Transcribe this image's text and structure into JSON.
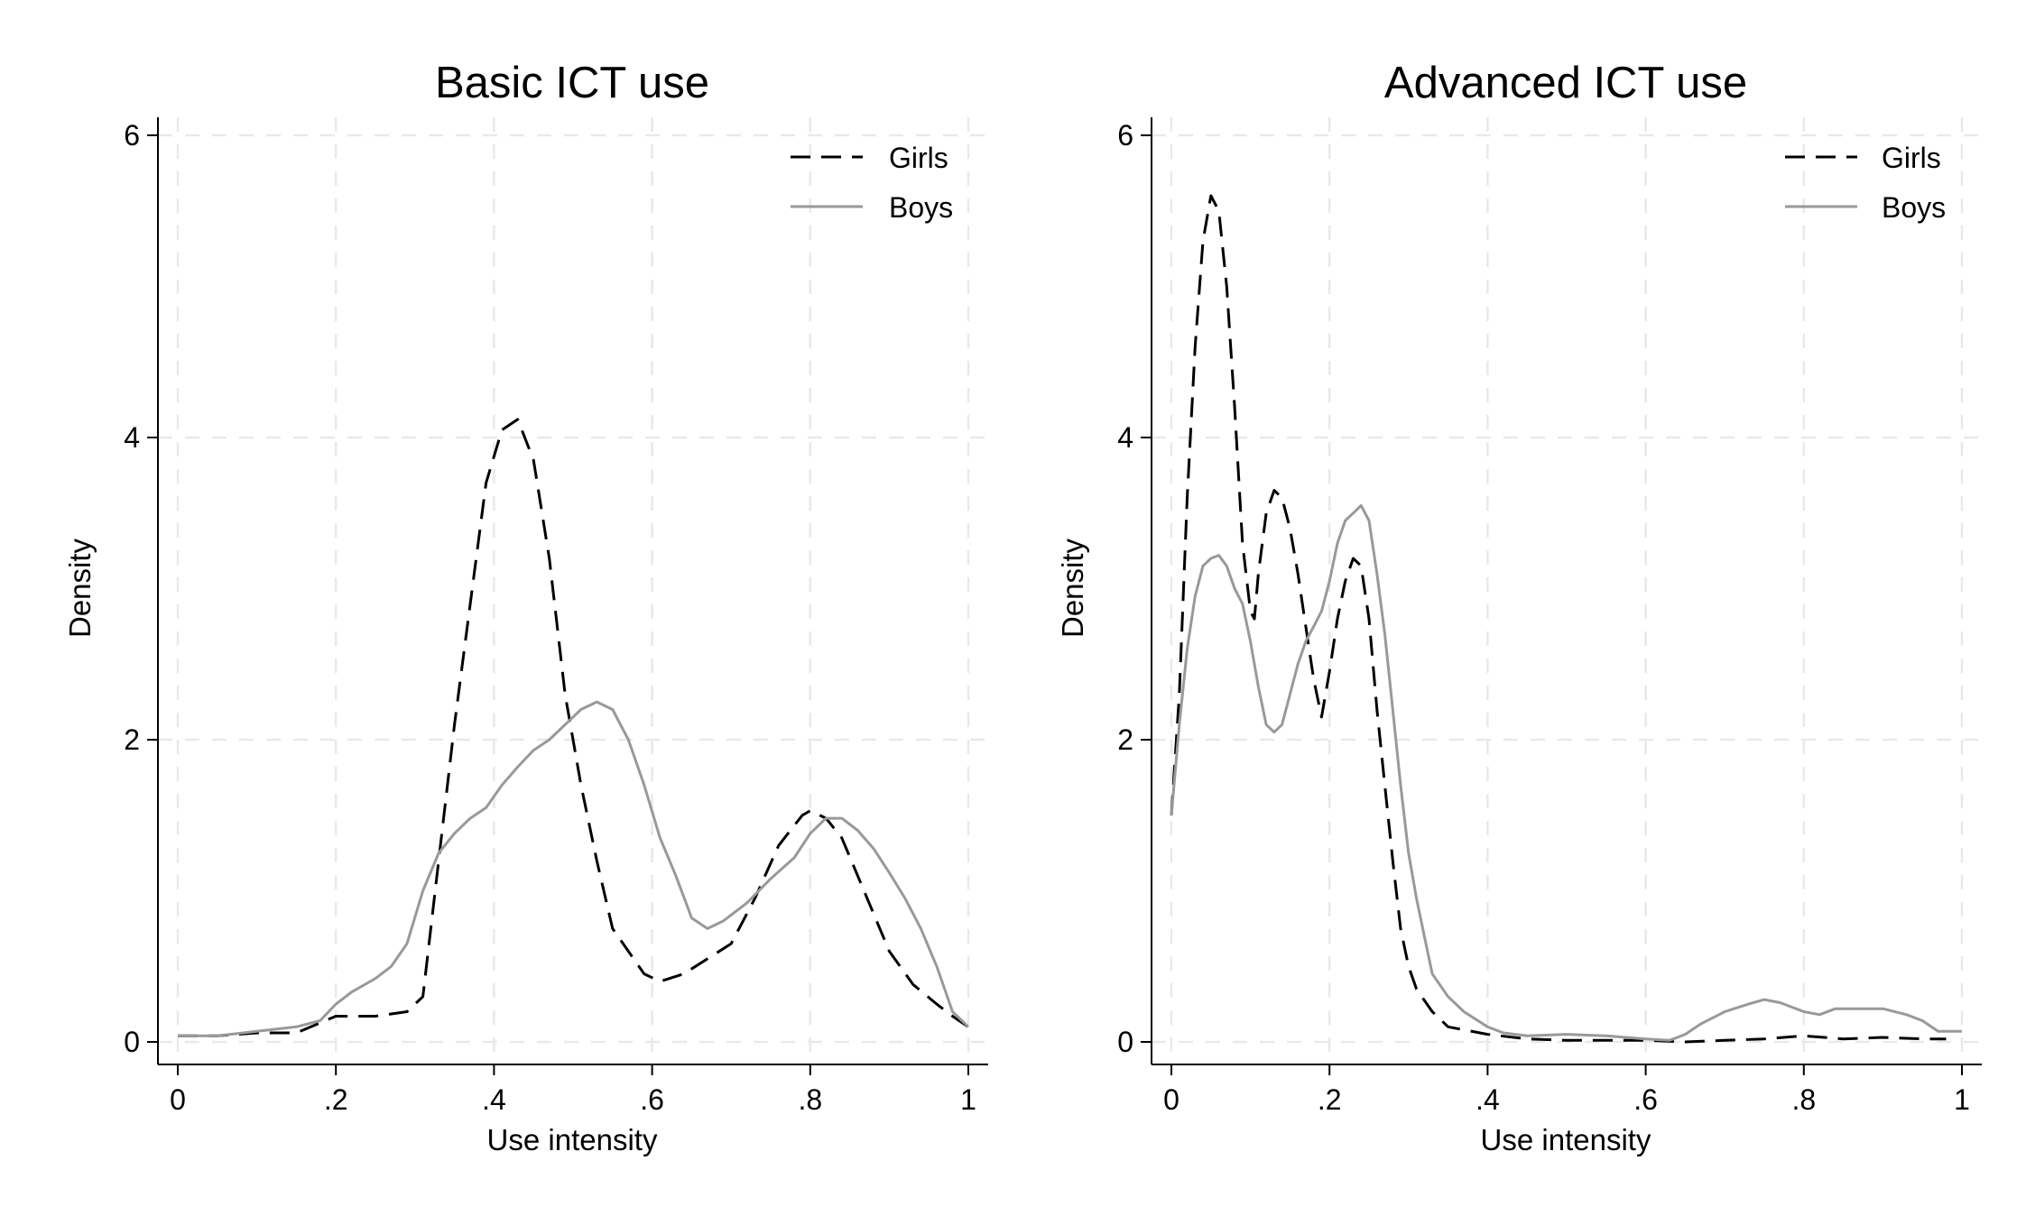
{
  "chart_data": [
    {
      "type": "line",
      "title": "Basic ICT use",
      "xlabel": "Use intensity",
      "ylabel": "Density",
      "xlim": [
        0,
        1
      ],
      "ylim": [
        0,
        6
      ],
      "x_ticks": [
        "0",
        ".2",
        ".4",
        ".6",
        ".8",
        "1"
      ],
      "y_ticks": [
        "0",
        "2",
        "4",
        "6"
      ],
      "grid": true,
      "legend_position": "top-right",
      "series": [
        {
          "name": "Girls",
          "style": "dashed",
          "color": "#000000",
          "points": [
            [
              0,
              0.04
            ],
            [
              0.05,
              0.04
            ],
            [
              0.1,
              0.06
            ],
            [
              0.15,
              0.06
            ],
            [
              0.2,
              0.17
            ],
            [
              0.25,
              0.17
            ],
            [
              0.29,
              0.2
            ],
            [
              0.31,
              0.3
            ],
            [
              0.33,
              1.2
            ],
            [
              0.35,
              2.1
            ],
            [
              0.37,
              2.9
            ],
            [
              0.39,
              3.7
            ],
            [
              0.41,
              4.05
            ],
            [
              0.43,
              4.12
            ],
            [
              0.45,
              3.85
            ],
            [
              0.47,
              3.2
            ],
            [
              0.49,
              2.3
            ],
            [
              0.51,
              1.7
            ],
            [
              0.53,
              1.2
            ],
            [
              0.55,
              0.75
            ],
            [
              0.57,
              0.6
            ],
            [
              0.59,
              0.45
            ],
            [
              0.61,
              0.4
            ],
            [
              0.64,
              0.45
            ],
            [
              0.67,
              0.55
            ],
            [
              0.7,
              0.65
            ],
            [
              0.73,
              0.95
            ],
            [
              0.76,
              1.3
            ],
            [
              0.79,
              1.5
            ],
            [
              0.8,
              1.53
            ],
            [
              0.82,
              1.48
            ],
            [
              0.84,
              1.35
            ],
            [
              0.86,
              1.1
            ],
            [
              0.88,
              0.85
            ],
            [
              0.9,
              0.6
            ],
            [
              0.93,
              0.38
            ],
            [
              0.96,
              0.25
            ],
            [
              0.98,
              0.17
            ],
            [
              1,
              0.1
            ]
          ]
        },
        {
          "name": "Boys",
          "style": "solid",
          "color": "#999999",
          "points": [
            [
              0,
              0.04
            ],
            [
              0.05,
              0.04
            ],
            [
              0.1,
              0.07
            ],
            [
              0.15,
              0.1
            ],
            [
              0.18,
              0.14
            ],
            [
              0.2,
              0.25
            ],
            [
              0.22,
              0.33
            ],
            [
              0.25,
              0.42
            ],
            [
              0.27,
              0.5
            ],
            [
              0.29,
              0.65
            ],
            [
              0.31,
              1.0
            ],
            [
              0.33,
              1.25
            ],
            [
              0.35,
              1.38
            ],
            [
              0.37,
              1.48
            ],
            [
              0.39,
              1.55
            ],
            [
              0.41,
              1.7
            ],
            [
              0.43,
              1.82
            ],
            [
              0.45,
              1.93
            ],
            [
              0.47,
              2.0
            ],
            [
              0.49,
              2.1
            ],
            [
              0.51,
              2.2
            ],
            [
              0.53,
              2.25
            ],
            [
              0.55,
              2.2
            ],
            [
              0.57,
              2.0
            ],
            [
              0.59,
              1.7
            ],
            [
              0.61,
              1.35
            ],
            [
              0.63,
              1.1
            ],
            [
              0.65,
              0.82
            ],
            [
              0.67,
              0.75
            ],
            [
              0.69,
              0.8
            ],
            [
              0.72,
              0.92
            ],
            [
              0.75,
              1.08
            ],
            [
              0.78,
              1.22
            ],
            [
              0.8,
              1.38
            ],
            [
              0.82,
              1.48
            ],
            [
              0.84,
              1.48
            ],
            [
              0.86,
              1.4
            ],
            [
              0.88,
              1.28
            ],
            [
              0.9,
              1.12
            ],
            [
              0.92,
              0.95
            ],
            [
              0.94,
              0.75
            ],
            [
              0.96,
              0.5
            ],
            [
              0.98,
              0.2
            ],
            [
              1,
              0.1
            ]
          ]
        }
      ]
    },
    {
      "type": "line",
      "title": "Advanced ICT use",
      "xlabel": "Use intensity",
      "ylabel": "Density",
      "xlim": [
        0,
        1
      ],
      "ylim": [
        0,
        6
      ],
      "x_ticks": [
        "0",
        ".2",
        ".4",
        ".6",
        ".8",
        "1"
      ],
      "y_ticks": [
        "0",
        "2",
        "4",
        "6"
      ],
      "grid": true,
      "legend_position": "top-right",
      "series": [
        {
          "name": "Girls",
          "style": "dashed",
          "color": "#000000",
          "points": [
            [
              0,
              1.5
            ],
            [
              0.01,
              2.3
            ],
            [
              0.02,
              3.6
            ],
            [
              0.03,
              4.6
            ],
            [
              0.04,
              5.3
            ],
            [
              0.05,
              5.6
            ],
            [
              0.06,
              5.5
            ],
            [
              0.07,
              5.0
            ],
            [
              0.08,
              4.2
            ],
            [
              0.09,
              3.3
            ],
            [
              0.1,
              2.85
            ],
            [
              0.105,
              2.8
            ],
            [
              0.11,
              3.1
            ],
            [
              0.12,
              3.5
            ],
            [
              0.13,
              3.65
            ],
            [
              0.14,
              3.6
            ],
            [
              0.15,
              3.4
            ],
            [
              0.16,
              3.1
            ],
            [
              0.17,
              2.75
            ],
            [
              0.18,
              2.4
            ],
            [
              0.19,
              2.15
            ],
            [
              0.2,
              2.45
            ],
            [
              0.21,
              2.8
            ],
            [
              0.22,
              3.05
            ],
            [
              0.23,
              3.2
            ],
            [
              0.24,
              3.15
            ],
            [
              0.25,
              2.8
            ],
            [
              0.26,
              2.2
            ],
            [
              0.27,
              1.7
            ],
            [
              0.28,
              1.2
            ],
            [
              0.29,
              0.75
            ],
            [
              0.3,
              0.5
            ],
            [
              0.31,
              0.35
            ],
            [
              0.33,
              0.2
            ],
            [
              0.35,
              0.1
            ],
            [
              0.4,
              0.05
            ],
            [
              0.45,
              0.02
            ],
            [
              0.5,
              0.01
            ],
            [
              0.6,
              0.01
            ],
            [
              0.65,
              0.0
            ],
            [
              0.7,
              0.01
            ],
            [
              0.75,
              0.02
            ],
            [
              0.8,
              0.04
            ],
            [
              0.85,
              0.02
            ],
            [
              0.9,
              0.03
            ],
            [
              0.95,
              0.02
            ],
            [
              0.98,
              0.02
            ]
          ]
        },
        {
          "name": "Boys",
          "style": "solid",
          "color": "#999999",
          "points": [
            [
              0,
              1.5
            ],
            [
              0.01,
              2.1
            ],
            [
              0.02,
              2.6
            ],
            [
              0.03,
              2.95
            ],
            [
              0.04,
              3.15
            ],
            [
              0.05,
              3.2
            ],
            [
              0.06,
              3.22
            ],
            [
              0.07,
              3.15
            ],
            [
              0.08,
              3.0
            ],
            [
              0.09,
              2.9
            ],
            [
              0.1,
              2.65
            ],
            [
              0.11,
              2.35
            ],
            [
              0.12,
              2.1
            ],
            [
              0.13,
              2.05
            ],
            [
              0.14,
              2.1
            ],
            [
              0.15,
              2.3
            ],
            [
              0.16,
              2.5
            ],
            [
              0.17,
              2.65
            ],
            [
              0.18,
              2.75
            ],
            [
              0.19,
              2.85
            ],
            [
              0.2,
              3.05
            ],
            [
              0.21,
              3.3
            ],
            [
              0.22,
              3.45
            ],
            [
              0.23,
              3.5
            ],
            [
              0.24,
              3.55
            ],
            [
              0.25,
              3.45
            ],
            [
              0.26,
              3.1
            ],
            [
              0.27,
              2.7
            ],
            [
              0.28,
              2.2
            ],
            [
              0.29,
              1.7
            ],
            [
              0.3,
              1.25
            ],
            [
              0.31,
              0.95
            ],
            [
              0.32,
              0.7
            ],
            [
              0.33,
              0.45
            ],
            [
              0.35,
              0.3
            ],
            [
              0.37,
              0.2
            ],
            [
              0.4,
              0.1
            ],
            [
              0.42,
              0.06
            ],
            [
              0.45,
              0.04
            ],
            [
              0.5,
              0.05
            ],
            [
              0.55,
              0.04
            ],
            [
              0.6,
              0.02
            ],
            [
              0.63,
              0.01
            ],
            [
              0.65,
              0.05
            ],
            [
              0.67,
              0.12
            ],
            [
              0.7,
              0.2
            ],
            [
              0.73,
              0.25
            ],
            [
              0.75,
              0.28
            ],
            [
              0.77,
              0.26
            ],
            [
              0.8,
              0.2
            ],
            [
              0.82,
              0.18
            ],
            [
              0.84,
              0.22
            ],
            [
              0.87,
              0.22
            ],
            [
              0.9,
              0.22
            ],
            [
              0.93,
              0.18
            ],
            [
              0.95,
              0.14
            ],
            [
              0.97,
              0.07
            ],
            [
              1,
              0.07
            ]
          ]
        }
      ]
    }
  ]
}
